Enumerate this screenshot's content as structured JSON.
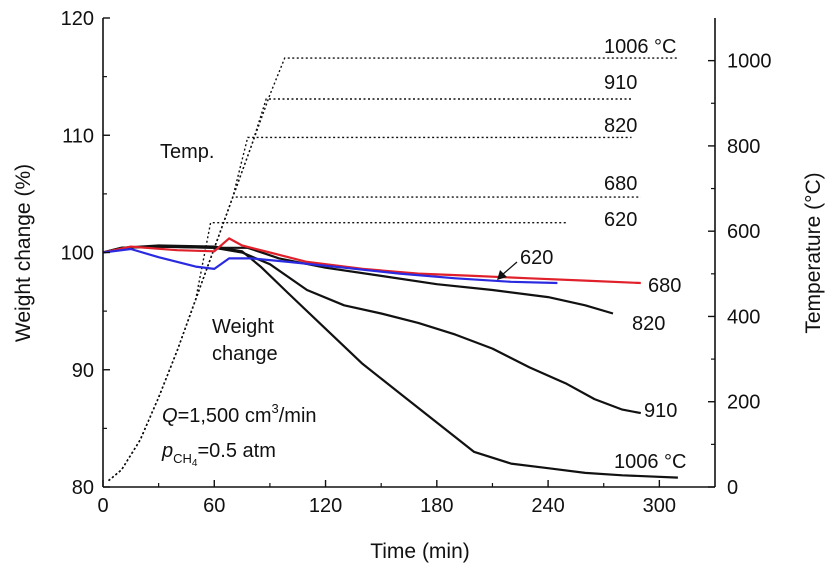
{
  "chart_data": {
    "type": "line",
    "title": "",
    "xlabel": "Time (min)",
    "ylabel_left": "Weight change (%)",
    "ylabel_right": "Temperature (°C)",
    "xlim": [
      0,
      330
    ],
    "ylim_left": [
      80,
      120
    ],
    "ylim_right": [
      0,
      1100
    ],
    "x_ticks": [
      0,
      60,
      120,
      180,
      240,
      300
    ],
    "y_left_ticks": [
      80,
      90,
      100,
      110,
      120
    ],
    "y_right_ticks": [
      0,
      200,
      400,
      600,
      800,
      1000
    ],
    "grid": false,
    "annotations": {
      "temp_label": "Temp.",
      "weight_label_line1": "Weight",
      "weight_label_line2": "change",
      "flow_q": "Q",
      "flow_rest": "=1,500 cm",
      "flow_exp": "3",
      "flow_unit": "/min",
      "p_symbol": "p",
      "p_sub1": "CH",
      "p_sub2": "4",
      "p_rest": "=0.5 atm"
    },
    "temperature_series": [
      {
        "name": "1006 °C",
        "label": "1006 °C",
        "points": [
          [
            3,
            15
          ],
          [
            10,
            40
          ],
          [
            20,
            110
          ],
          [
            30,
            210
          ],
          [
            40,
            320
          ],
          [
            50,
            440
          ],
          [
            60,
            560
          ],
          [
            70,
            680
          ],
          [
            80,
            800
          ],
          [
            90,
            920
          ],
          [
            98,
            1006
          ],
          [
            310,
            1006
          ]
        ]
      },
      {
        "name": "910",
        "label": "910",
        "points": [
          [
            3,
            15
          ],
          [
            10,
            40
          ],
          [
            20,
            110
          ],
          [
            30,
            210
          ],
          [
            40,
            320
          ],
          [
            50,
            440
          ],
          [
            60,
            560
          ],
          [
            70,
            680
          ],
          [
            80,
            800
          ],
          [
            88,
            910
          ],
          [
            285,
            910
          ]
        ]
      },
      {
        "name": "820",
        "label": "820",
        "points": [
          [
            3,
            15
          ],
          [
            10,
            40
          ],
          [
            20,
            110
          ],
          [
            30,
            210
          ],
          [
            40,
            320
          ],
          [
            50,
            440
          ],
          [
            60,
            560
          ],
          [
            70,
            680
          ],
          [
            78,
            820
          ],
          [
            285,
            820
          ]
        ]
      },
      {
        "name": "680",
        "label": "680",
        "points": [
          [
            3,
            15
          ],
          [
            10,
            40
          ],
          [
            20,
            110
          ],
          [
            30,
            210
          ],
          [
            40,
            320
          ],
          [
            50,
            440
          ],
          [
            60,
            560
          ],
          [
            70,
            680
          ],
          [
            290,
            680
          ]
        ]
      },
      {
        "name": "620",
        "label": "620",
        "points": [
          [
            3,
            15
          ],
          [
            10,
            40
          ],
          [
            20,
            110
          ],
          [
            30,
            210
          ],
          [
            40,
            320
          ],
          [
            50,
            440
          ],
          [
            58,
            620
          ],
          [
            250,
            620
          ]
        ]
      }
    ],
    "weight_series": [
      {
        "name": "1006 °C",
        "label": "1006 °C",
        "color": "#111111",
        "points": [
          [
            0,
            100
          ],
          [
            10,
            100.4
          ],
          [
            30,
            100.6
          ],
          [
            60,
            100.5
          ],
          [
            75,
            100.1
          ],
          [
            85,
            98.8
          ],
          [
            100,
            96.5
          ],
          [
            120,
            93.5
          ],
          [
            140,
            90.5
          ],
          [
            160,
            88
          ],
          [
            180,
            85.5
          ],
          [
            200,
            83
          ],
          [
            220,
            82
          ],
          [
            240,
            81.6
          ],
          [
            260,
            81.2
          ],
          [
            280,
            81
          ],
          [
            310,
            80.8
          ]
        ]
      },
      {
        "name": "910",
        "label": "910",
        "color": "#111111",
        "points": [
          [
            0,
            100
          ],
          [
            10,
            100.4
          ],
          [
            30,
            100.5
          ],
          [
            60,
            100.4
          ],
          [
            75,
            100
          ],
          [
            90,
            99
          ],
          [
            110,
            96.8
          ],
          [
            130,
            95.5
          ],
          [
            150,
            94.8
          ],
          [
            170,
            94
          ],
          [
            190,
            93
          ],
          [
            210,
            91.8
          ],
          [
            230,
            90.2
          ],
          [
            250,
            88.8
          ],
          [
            265,
            87.5
          ],
          [
            280,
            86.6
          ],
          [
            290,
            86.3
          ]
        ]
      },
      {
        "name": "820",
        "label": "820",
        "color": "#111111",
        "points": [
          [
            0,
            100
          ],
          [
            10,
            100.4
          ],
          [
            30,
            100.5
          ],
          [
            60,
            100.4
          ],
          [
            78,
            100.4
          ],
          [
            95,
            99.5
          ],
          [
            120,
            98.7
          ],
          [
            150,
            98
          ],
          [
            180,
            97.3
          ],
          [
            210,
            96.8
          ],
          [
            240,
            96.2
          ],
          [
            260,
            95.5
          ],
          [
            275,
            94.8
          ]
        ]
      },
      {
        "name": "680",
        "label": "680",
        "color": "#e0202a",
        "points": [
          [
            0,
            100
          ],
          [
            15,
            100.5
          ],
          [
            40,
            100.2
          ],
          [
            60,
            100.1
          ],
          [
            68,
            101.2
          ],
          [
            75,
            100.6
          ],
          [
            90,
            100
          ],
          [
            110,
            99.2
          ],
          [
            140,
            98.6
          ],
          [
            170,
            98.2
          ],
          [
            200,
            98
          ],
          [
            230,
            97.8
          ],
          [
            260,
            97.6
          ],
          [
            290,
            97.4
          ]
        ]
      },
      {
        "name": "620",
        "label": "620",
        "color": "#2a2ae0",
        "points": [
          [
            0,
            100
          ],
          [
            15,
            100.3
          ],
          [
            30,
            99.6
          ],
          [
            50,
            98.8
          ],
          [
            60,
            98.6
          ],
          [
            68,
            99.5
          ],
          [
            80,
            99.5
          ],
          [
            100,
            99.2
          ],
          [
            130,
            98.7
          ],
          [
            160,
            98.2
          ],
          [
            190,
            97.8
          ],
          [
            220,
            97.5
          ],
          [
            245,
            97.4
          ]
        ]
      }
    ]
  }
}
